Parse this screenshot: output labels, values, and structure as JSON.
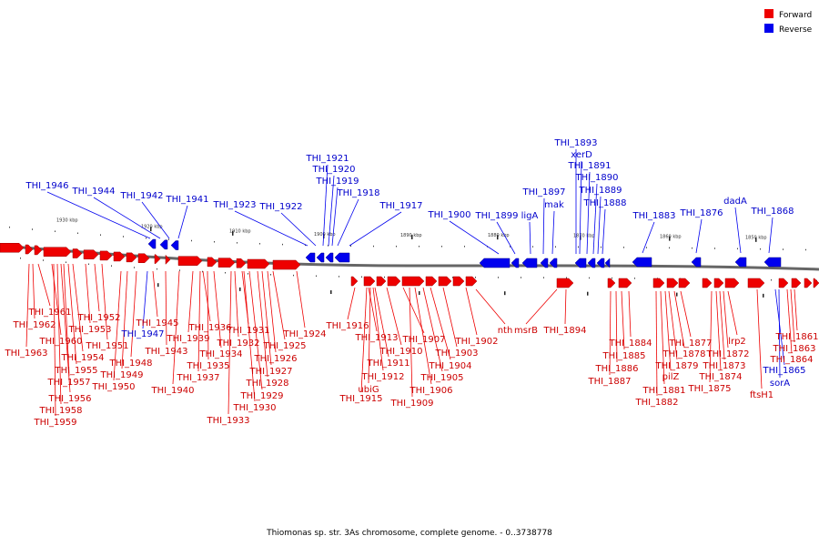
{
  "legend": [
    {
      "label": "Forward",
      "color": "#ee0000"
    },
    {
      "label": "Reverse",
      "color": "#0000ee"
    }
  ],
  "caption": "Thiomonas sp. str. 3As chromosome, complete genome. - 0..3738778",
  "kbp_labels": [
    "1930 kbp",
    "1920 kbp",
    "1910 kbp",
    "1900 kbp",
    "1890 kbp",
    "1880 kbp",
    "1870 kbp",
    "1860 kbp",
    "1850 kbp"
  ],
  "reverse_genes": [
    "THI_1946",
    "THI_1944",
    "THI_1942",
    "THI_1941",
    "THI_1923",
    "THI_1922",
    "THI_1921",
    "THI_1920",
    "THI_1919",
    "THI_1918",
    "THI_1917",
    "THI_1900",
    "THI_1899",
    "ligA",
    "THI_1897",
    "mak",
    "THI_1893",
    "xerD",
    "THI_1891",
    "THI_1890",
    "THI_1889",
    "THI_1888",
    "THI_1883",
    "THI_1876",
    "dadA",
    "THI_1868"
  ],
  "reverse_lower_genes": [
    "THI_1947",
    "THI_1865",
    "sorA"
  ],
  "forward_genes": [
    "THI_1961",
    "THI_1962",
    "THI_1963",
    "THI_1960",
    "THI_1952",
    "THI_1953",
    "THI_1954",
    "THI_1951",
    "THI_1955",
    "THI_1957",
    "THI_1956",
    "THI_1958",
    "THI_1959",
    "THI_1945",
    "THI_1948",
    "THI_1949",
    "THI_1950",
    "THI_1943",
    "THI_1940",
    "THI_1936",
    "THI_1939",
    "THI_1935",
    "THI_1937",
    "THI_1934",
    "THI_1931",
    "THI_1932",
    "THI_1933",
    "THI_1925",
    "THI_1926",
    "THI_1927",
    "THI_1928",
    "THI_1929",
    "THI_1930",
    "THI_1924",
    "THI_1916",
    "THI_1913",
    "THI_1911",
    "THI_1912",
    "ubiG",
    "THI_1915",
    "THI_1910",
    "THI_1907",
    "THI_1906",
    "THI_1909",
    "THI_1904",
    "THI_1905",
    "THI_1903",
    "THI_1902",
    "nth",
    "msrB",
    "THI_1894",
    "THI_1884",
    "THI_1885",
    "THI_1886",
    "THI_1887",
    "THI_1877",
    "THI_1878",
    "THI_1879",
    "pilZ",
    "THI_1881",
    "THI_1882",
    "lrp2",
    "THI_1872",
    "THI_1873",
    "THI_1874",
    "THI_1875",
    "ftsH1",
    "THI_1861",
    "THI_1863",
    "THI_1864"
  ]
}
